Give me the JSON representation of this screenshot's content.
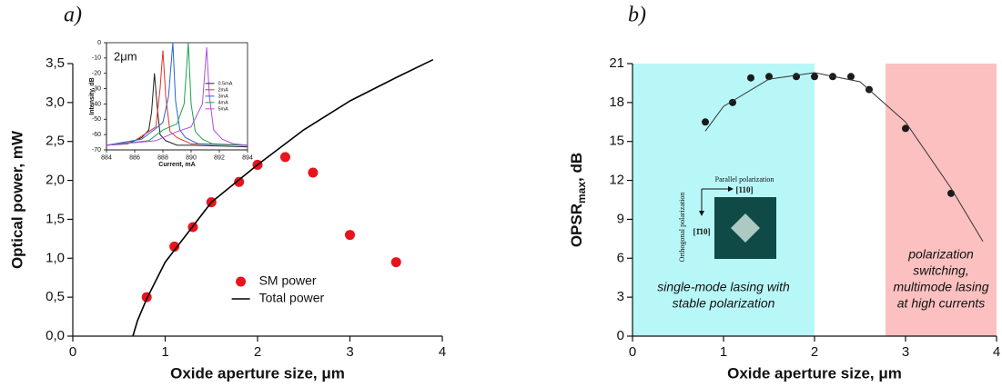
{
  "chart_data": [
    {
      "type": "scatter",
      "title": "a)",
      "xlabel": "Oxide aperture size, μm",
      "ylabel": "Optical power, mW",
      "xlim": [
        0,
        4
      ],
      "xticks": [
        0,
        1,
        2,
        3,
        4
      ],
      "ylim": [
        0,
        3.5
      ],
      "yticks": [
        {
          "value": 0,
          "label": "0,0"
        },
        {
          "value": 0.5,
          "label": "0,5"
        },
        {
          "value": 1,
          "label": "1,0"
        },
        {
          "value": 1.5,
          "label": "1,5"
        },
        {
          "value": 2,
          "label": "2,0"
        },
        {
          "value": 2.5,
          "label": "2,5"
        },
        {
          "value": 3,
          "label": "3,0"
        },
        {
          "value": 3.5,
          "label": "3,5"
        }
      ],
      "legend": "lower right",
      "series": [
        {
          "name": "SM power",
          "mode": "markers",
          "color": "#e8141c",
          "x": [
            0.8,
            1.1,
            1.3,
            1.5,
            1.8,
            2.0,
            2.3,
            2.6,
            3.0,
            3.5
          ],
          "values": [
            0.5,
            1.15,
            1.4,
            1.72,
            1.98,
            2.2,
            2.3,
            2.1,
            1.3,
            0.95
          ]
        },
        {
          "name": "Total power",
          "mode": "line",
          "color": "#000000",
          "x": [
            0.65,
            0.7,
            0.8,
            1.0,
            1.5,
            2.0,
            2.5,
            3.0,
            3.5,
            3.9
          ],
          "values": [
            0,
            0.2,
            0.48,
            0.95,
            1.72,
            2.2,
            2.65,
            3.02,
            3.32,
            3.55
          ]
        }
      ]
    },
    {
      "type": "scatter",
      "title": "b)",
      "xlabel": "Oxide aperture size, μm",
      "ylabel": {
        "main": "OPSR",
        "sub": "max",
        "unit": ", dB"
      },
      "xlim": [
        0,
        4
      ],
      "xticks": [
        0,
        1,
        2,
        3,
        4
      ],
      "ylim": [
        0,
        21
      ],
      "yticks": [
        0,
        3,
        6,
        9,
        12,
        15,
        18,
        21
      ],
      "regions": [
        {
          "xrange": [
            0,
            2
          ],
          "color": "#b8f7f7",
          "lines": [
            "single-mode lasing with",
            "stable polarization"
          ]
        },
        {
          "xrange": [
            2.78,
            4
          ],
          "color": "#fcc0c0",
          "lines": [
            "polarization",
            "switching,",
            "multimode lasing",
            "at high currents"
          ]
        }
      ],
      "annotations": [
        "Parallel polarization",
        "[110]",
        "Orthogonal polarization",
        "[1̄10]"
      ],
      "series": [
        {
          "mode": "markers",
          "color": "#1a1a1a",
          "x": [
            0.8,
            1.1,
            1.3,
            1.5,
            1.8,
            2.0,
            2.2,
            2.4,
            2.6,
            3.0,
            3.5
          ],
          "values": [
            16.5,
            18,
            19.9,
            20,
            20,
            20,
            20,
            20,
            19,
            16,
            11
          ]
        },
        {
          "mode": "line",
          "color": "#333333",
          "x": [
            0.8,
            1.0,
            1.5,
            2.0,
            2.5,
            3.0,
            3.5,
            3.85
          ],
          "values": [
            15.8,
            17.7,
            19.8,
            20.3,
            19.6,
            16.5,
            11.4,
            7.3
          ]
        }
      ]
    },
    {
      "type": "line",
      "xlabel": "Current, mA",
      "ylabel": "Intensity, dB",
      "annotation": "2μm",
      "frame": true,
      "legend": "center right",
      "xlim": [
        884,
        894
      ],
      "xticks": [
        884,
        886,
        888,
        890,
        892,
        894
      ],
      "ylim": [
        -70,
        0
      ],
      "yticks": [
        0,
        -10,
        -20,
        -30,
        -40,
        -50,
        -60,
        -70
      ],
      "series": [
        {
          "name": "0.5mA",
          "mode": "line",
          "color": "#222222",
          "x": [
            884,
            885.5,
            886.5,
            887,
            887.2,
            887.4,
            887.6,
            887.8,
            888.2,
            889,
            890,
            894
          ],
          "values": [
            -67,
            -66,
            -62,
            -57,
            -45,
            -20,
            -42,
            -60,
            -64,
            -67,
            -67,
            -68
          ]
        },
        {
          "name": "2mA",
          "mode": "line",
          "color": "#e0302a",
          "x": [
            884,
            886,
            887,
            887.5,
            887.8,
            888.0,
            888.2,
            888.5,
            889,
            890,
            894
          ],
          "values": [
            -67,
            -64,
            -58,
            -55,
            -30,
            -5,
            -35,
            -58,
            -62,
            -66,
            -67
          ]
        },
        {
          "name": "3mA",
          "mode": "line",
          "color": "#2a62d8",
          "x": [
            884,
            886.5,
            887.5,
            888,
            888.4,
            888.7,
            888.9,
            889.2,
            889.6,
            890.5,
            894
          ],
          "values": [
            -67,
            -63,
            -56,
            -52,
            -35,
            0,
            -38,
            -57,
            -62,
            -66,
            -67
          ]
        },
        {
          "name": "4mA",
          "mode": "line",
          "color": "#1fa04a",
          "x": [
            884,
            887,
            888,
            889,
            889.5,
            889.8,
            890.0,
            890.3,
            890.8,
            891.5,
            894
          ],
          "values": [
            -67,
            -64,
            -57,
            -53,
            -40,
            0,
            -40,
            -58,
            -63,
            -66,
            -67
          ]
        },
        {
          "name": "5mA",
          "mode": "line",
          "color": "#b04ee0",
          "x": [
            884,
            887.5,
            889,
            890,
            890.8,
            891.1,
            891.3,
            891.6,
            892.2,
            893,
            894
          ],
          "values": [
            -67,
            -64,
            -58,
            -55,
            -40,
            -3,
            -35,
            -57,
            -63,
            -66,
            -67
          ]
        }
      ]
    }
  ]
}
